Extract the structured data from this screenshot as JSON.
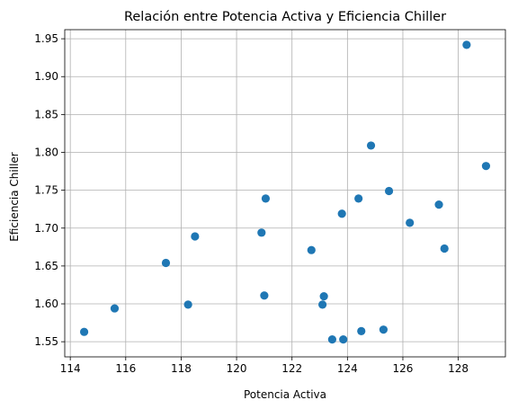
{
  "chart_data": {
    "type": "scatter",
    "title": "Relación entre Potencia Activa y Eficiencia Chiller",
    "xlabel": "Potencia Activa",
    "ylabel": "Eficiencia Chiller",
    "xlim": [
      113.8,
      129.7
    ],
    "ylim": [
      1.53,
      1.962
    ],
    "xticks": [
      114,
      116,
      118,
      120,
      122,
      124,
      126,
      128
    ],
    "xtick_labels": [
      "114",
      "116",
      "118",
      "120",
      "122",
      "124",
      "126",
      "128"
    ],
    "yticks": [
      1.55,
      1.6,
      1.65,
      1.7,
      1.75,
      1.8,
      1.85,
      1.9,
      1.95
    ],
    "ytick_labels": [
      "1.55",
      "1.60",
      "1.65",
      "1.70",
      "1.75",
      "1.80",
      "1.85",
      "1.90",
      "1.95"
    ],
    "grid": true,
    "marker_color": "#1f77b4",
    "points": [
      {
        "x": 114.5,
        "y": 1.563
      },
      {
        "x": 115.6,
        "y": 1.594
      },
      {
        "x": 117.45,
        "y": 1.654
      },
      {
        "x": 118.25,
        "y": 1.599
      },
      {
        "x": 118.5,
        "y": 1.689
      },
      {
        "x": 120.9,
        "y": 1.694
      },
      {
        "x": 121.0,
        "y": 1.611
      },
      {
        "x": 121.05,
        "y": 1.739
      },
      {
        "x": 122.7,
        "y": 1.671
      },
      {
        "x": 123.1,
        "y": 1.599
      },
      {
        "x": 123.15,
        "y": 1.61
      },
      {
        "x": 123.45,
        "y": 1.553
      },
      {
        "x": 123.8,
        "y": 1.719
      },
      {
        "x": 123.85,
        "y": 1.553
      },
      {
        "x": 124.4,
        "y": 1.739
      },
      {
        "x": 124.5,
        "y": 1.564
      },
      {
        "x": 124.85,
        "y": 1.809
      },
      {
        "x": 125.3,
        "y": 1.566
      },
      {
        "x": 125.5,
        "y": 1.749
      },
      {
        "x": 126.25,
        "y": 1.707
      },
      {
        "x": 127.3,
        "y": 1.731
      },
      {
        "x": 127.5,
        "y": 1.673
      },
      {
        "x": 128.3,
        "y": 1.942
      },
      {
        "x": 129.0,
        "y": 1.782
      }
    ]
  }
}
